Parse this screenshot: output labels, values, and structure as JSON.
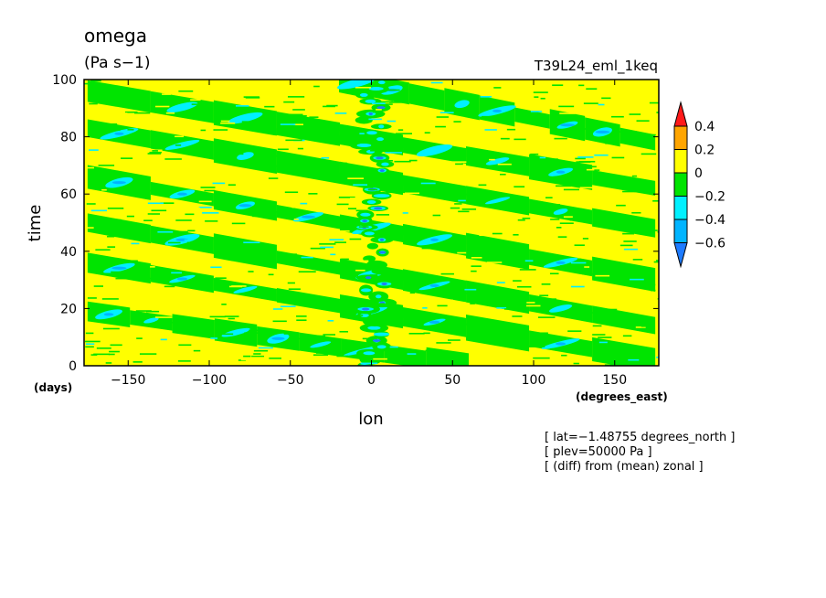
{
  "header": {
    "title": "omega",
    "units": "(Pa s−1)",
    "experiment": "T39L24_eml_1keq"
  },
  "notes": [
    "[ lat=−1.48755 degrees_north ]",
    "[ plev=50000 Pa ]",
    "[ (diff) from (mean) zonal ]"
  ],
  "chart_data": {
    "type": "heatmap",
    "title": "omega",
    "xlabel": "lon",
    "xunits": "(degrees_east)",
    "ylabel": "time",
    "yunits": "(days)",
    "xlim": [
      -177.1875,
      177.1875
    ],
    "ylim": [
      0,
      100
    ],
    "xticks": [
      -150,
      -100,
      -50,
      0,
      50,
      100,
      150
    ],
    "xtick_labels": [
      "−150",
      "−100",
      "−50",
      "0",
      "50",
      "100",
      "150"
    ],
    "yticks": [
      0,
      20,
      40,
      60,
      80,
      100
    ],
    "ytick_labels": [
      "0",
      "20",
      "40",
      "60",
      "80",
      "100"
    ],
    "colorbar": {
      "levels": [
        -0.6,
        -0.4,
        -0.2,
        0,
        0.2,
        0.4
      ],
      "level_labels": [
        "−0.6",
        "−0.4",
        "−0.2",
        "0",
        "0.2",
        "0.4"
      ],
      "colors": [
        "#1e7bff",
        "#00b4ff",
        "#00f0ff",
        "#00e400",
        "#ffff00",
        "#ffa500",
        "#ff1a1a"
      ]
    },
    "field_colors": {
      "yellow": "#ffff00",
      "green": "#00e400",
      "cyan": "#00f0ff",
      "light_blue": "#00b4ff",
      "blue": "#1e7bff"
    },
    "features": [
      {
        "description": "eastward/westward tilted bands",
        "x0": -175,
        "t0": 96,
        "x1": 175,
        "t1": 62
      },
      {
        "description": "band",
        "x0": -175,
        "t0": 83,
        "x1": 175,
        "t1": 48
      },
      {
        "description": "band",
        "x0": -175,
        "t0": 66,
        "x1": 175,
        "t1": 30
      },
      {
        "description": "band",
        "x0": -175,
        "t0": 50,
        "x1": 175,
        "t1": 14
      },
      {
        "description": "band",
        "x0": -175,
        "t0": 36,
        "x1": 175,
        "t1": 2
      },
      {
        "description": "band",
        "x0": -175,
        "t0": 19,
        "x1": 60,
        "t1": 0
      },
      {
        "description": "band",
        "x0": -20,
        "t0": 100,
        "x1": 175,
        "t1": 78
      }
    ],
    "convective_column": {
      "x_center": 2,
      "t_range": [
        0,
        100
      ]
    }
  }
}
